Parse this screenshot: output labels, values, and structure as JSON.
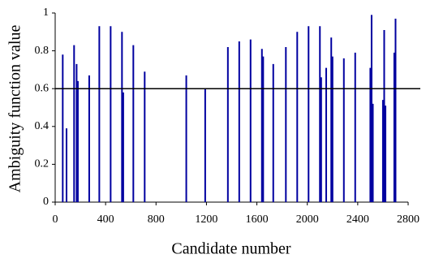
{
  "chart_data": {
    "type": "stem",
    "x_label": "Candidate number",
    "y_label": "Ambiguity function value",
    "color": "#0000a0",
    "x": [
      60,
      90,
      150,
      170,
      180,
      270,
      350,
      440,
      530,
      540,
      620,
      710,
      1040,
      1190,
      1370,
      1460,
      1550,
      1640,
      1650,
      1730,
      1830,
      1920,
      2010,
      2100,
      2110,
      2150,
      2190,
      2200,
      2290,
      2380,
      2500,
      2510,
      2520,
      2600,
      2610,
      2620,
      2690,
      2700
    ],
    "values": [
      0.78,
      0.39,
      0.83,
      0.73,
      0.64,
      0.67,
      0.93,
      0.93,
      0.9,
      0.58,
      0.83,
      0.69,
      0.67,
      0.6,
      0.82,
      0.85,
      0.86,
      0.81,
      0.77,
      0.73,
      0.82,
      0.9,
      0.93,
      0.93,
      0.66,
      0.71,
      0.87,
      0.77,
      0.76,
      0.79,
      0.71,
      0.99,
      0.52,
      0.54,
      0.91,
      0.51,
      0.79,
      0.97
    ],
    "reference_line": 0.6,
    "xlim": [
      0,
      2800
    ],
    "xticks": [
      0,
      400,
      800,
      1200,
      1600,
      2000,
      2400,
      2800
    ],
    "ylim": [
      0,
      1
    ],
    "yticks": [
      0,
      0.2,
      0.4,
      0.6,
      0.8,
      1
    ]
  }
}
